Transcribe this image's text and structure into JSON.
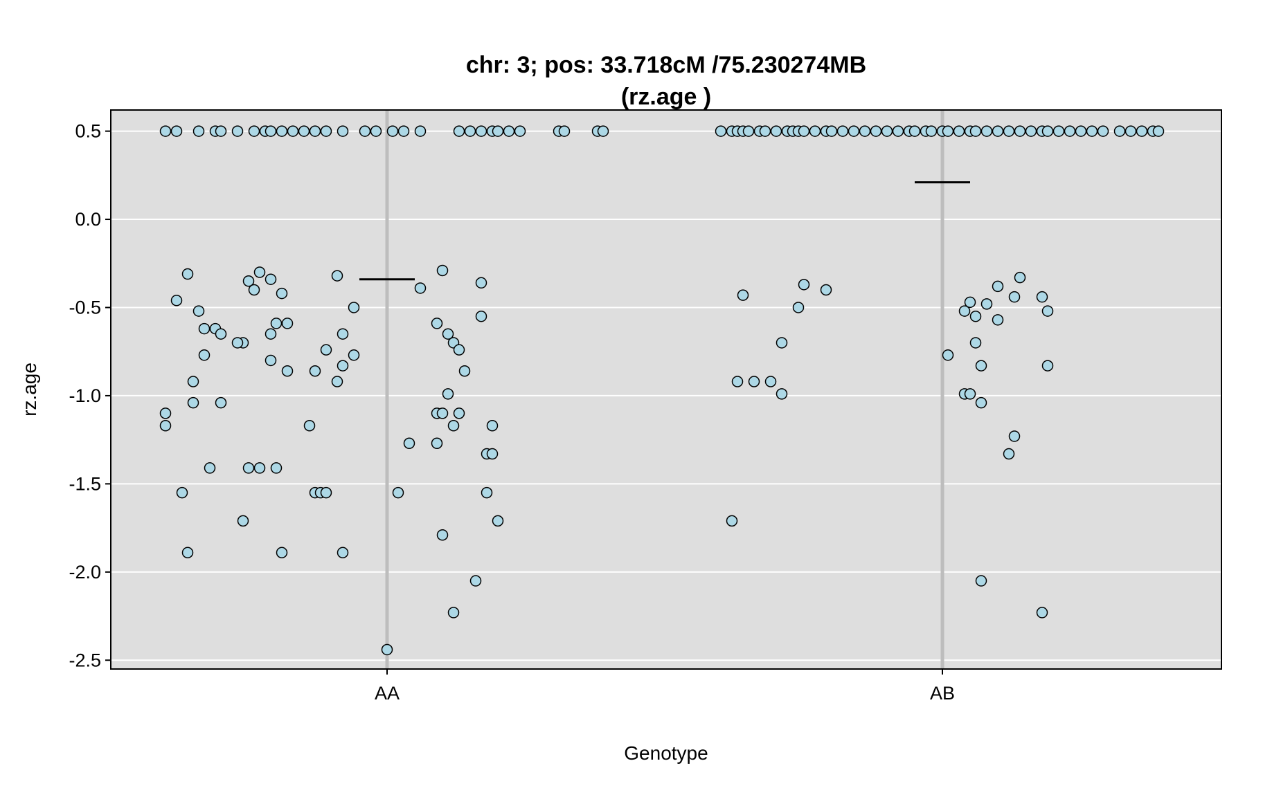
{
  "chart_data": {
    "type": "scatter",
    "title": [
      "chr: 3; pos: 33.718cM /75.230274MB",
      "(rz.age )"
    ],
    "xlabel": "Genotype",
    "ylabel": "rz.age",
    "categories": [
      "AA",
      "AB"
    ],
    "ylim": [
      -2.55,
      0.62
    ],
    "yticks": [
      0.5,
      0.0,
      -0.5,
      -1.0,
      -1.5,
      -2.0,
      -2.5
    ],
    "ytick_labels": [
      "0.5",
      "0.0",
      "-0.5",
      "-1.0",
      "-1.5",
      "-2.0",
      "-2.5"
    ],
    "grid": true,
    "colors": {
      "panel": "#dedede",
      "point_fill": "#add8e6",
      "point_stroke": "#000000",
      "grid": "#ffffff",
      "center_line": "#bdbdbd",
      "mean_line": "#000000"
    },
    "series": [
      {
        "category": "AA",
        "mean": -0.34,
        "points": [
          [
            -0.4,
            0.5
          ],
          [
            -0.38,
            0.5
          ],
          [
            -0.34,
            0.5
          ],
          [
            -0.31,
            0.5
          ],
          [
            -0.3,
            0.5
          ],
          [
            -0.27,
            0.5
          ],
          [
            -0.24,
            0.5
          ],
          [
            -0.22,
            0.5
          ],
          [
            -0.21,
            0.5
          ],
          [
            -0.19,
            0.5
          ],
          [
            -0.17,
            0.5
          ],
          [
            -0.15,
            0.5
          ],
          [
            -0.13,
            0.5
          ],
          [
            -0.11,
            0.5
          ],
          [
            -0.08,
            0.5
          ],
          [
            -0.04,
            0.5
          ],
          [
            -0.02,
            0.5
          ],
          [
            0.01,
            0.5
          ],
          [
            0.03,
            0.5
          ],
          [
            0.06,
            0.5
          ],
          [
            0.13,
            0.5
          ],
          [
            0.15,
            0.5
          ],
          [
            0.17,
            0.5
          ],
          [
            0.19,
            0.5
          ],
          [
            0.2,
            0.5
          ],
          [
            0.22,
            0.5
          ],
          [
            0.24,
            0.5
          ],
          [
            0.31,
            0.5
          ],
          [
            0.32,
            0.5
          ],
          [
            0.38,
            0.5
          ],
          [
            0.39,
            0.5
          ],
          [
            -0.36,
            -0.31
          ],
          [
            -0.38,
            -0.46
          ],
          [
            -0.34,
            -0.52
          ],
          [
            -0.33,
            -0.62
          ],
          [
            -0.31,
            -0.62
          ],
          [
            -0.3,
            -0.65
          ],
          [
            -0.33,
            -0.77
          ],
          [
            -0.35,
            -0.92
          ],
          [
            -0.4,
            -1.1
          ],
          [
            -0.35,
            -1.04
          ],
          [
            -0.4,
            -1.17
          ],
          [
            -0.3,
            -1.04
          ],
          [
            -0.32,
            -1.41
          ],
          [
            -0.37,
            -1.55
          ],
          [
            -0.36,
            -1.89
          ],
          [
            -0.25,
            -0.35
          ],
          [
            -0.26,
            -0.7
          ],
          [
            -0.27,
            -0.7
          ],
          [
            -0.23,
            -0.3
          ],
          [
            -0.24,
            -0.4
          ],
          [
            -0.21,
            -0.34
          ],
          [
            -0.19,
            -0.42
          ],
          [
            -0.21,
            -0.65
          ],
          [
            -0.2,
            -0.59
          ],
          [
            -0.18,
            -0.59
          ],
          [
            -0.21,
            -0.8
          ],
          [
            -0.18,
            -0.86
          ],
          [
            -0.25,
            -1.41
          ],
          [
            -0.23,
            -1.41
          ],
          [
            -0.2,
            -1.41
          ],
          [
            -0.26,
            -1.71
          ],
          [
            -0.19,
            -1.89
          ],
          [
            -0.14,
            -1.17
          ],
          [
            -0.13,
            -1.55
          ],
          [
            -0.12,
            -1.55
          ],
          [
            -0.11,
            -1.55
          ],
          [
            -0.13,
            -0.86
          ],
          [
            -0.11,
            -0.74
          ],
          [
            -0.09,
            -0.92
          ],
          [
            -0.08,
            -0.83
          ],
          [
            -0.08,
            -0.65
          ],
          [
            -0.06,
            -0.77
          ],
          [
            -0.06,
            -0.5
          ],
          [
            -0.09,
            -0.32
          ],
          [
            -0.08,
            -1.89
          ],
          [
            0.02,
            -1.55
          ],
          [
            0.04,
            -1.27
          ],
          [
            0.06,
            -0.39
          ],
          [
            0.09,
            -1.1
          ],
          [
            0.09,
            -1.27
          ],
          [
            0.09,
            -0.59
          ],
          [
            0.1,
            -1.1
          ],
          [
            0.1,
            -0.29
          ],
          [
            0.1,
            -1.79
          ],
          [
            0.11,
            -0.99
          ],
          [
            0.11,
            -0.65
          ],
          [
            0.12,
            -0.7
          ],
          [
            0.13,
            -0.74
          ],
          [
            0.12,
            -1.17
          ],
          [
            0.13,
            -1.1
          ],
          [
            0.14,
            -0.86
          ],
          [
            0.12,
            -2.23
          ],
          [
            0.16,
            -2.05
          ],
          [
            0.17,
            -0.55
          ],
          [
            0.17,
            -0.36
          ],
          [
            0.18,
            -1.55
          ],
          [
            0.18,
            -1.33
          ],
          [
            0.19,
            -1.33
          ],
          [
            0.19,
            -1.17
          ],
          [
            0.2,
            -1.71
          ],
          [
            0.0,
            -2.44
          ]
        ]
      },
      {
        "category": "AB",
        "mean": 0.21,
        "points": [
          [
            -0.4,
            0.5
          ],
          [
            -0.38,
            0.5
          ],
          [
            -0.37,
            0.5
          ],
          [
            -0.36,
            0.5
          ],
          [
            -0.35,
            0.5
          ],
          [
            -0.33,
            0.5
          ],
          [
            -0.32,
            0.5
          ],
          [
            -0.3,
            0.5
          ],
          [
            -0.28,
            0.5
          ],
          [
            -0.27,
            0.5
          ],
          [
            -0.26,
            0.5
          ],
          [
            -0.25,
            0.5
          ],
          [
            -0.23,
            0.5
          ],
          [
            -0.21,
            0.5
          ],
          [
            -0.2,
            0.5
          ],
          [
            -0.18,
            0.5
          ],
          [
            -0.16,
            0.5
          ],
          [
            -0.14,
            0.5
          ],
          [
            -0.12,
            0.5
          ],
          [
            -0.1,
            0.5
          ],
          [
            -0.08,
            0.5
          ],
          [
            -0.06,
            0.5
          ],
          [
            -0.05,
            0.5
          ],
          [
            -0.03,
            0.5
          ],
          [
            -0.02,
            0.5
          ],
          [
            0.0,
            0.5
          ],
          [
            0.01,
            0.5
          ],
          [
            0.03,
            0.5
          ],
          [
            0.05,
            0.5
          ],
          [
            0.06,
            0.5
          ],
          [
            0.08,
            0.5
          ],
          [
            0.1,
            0.5
          ],
          [
            0.12,
            0.5
          ],
          [
            0.14,
            0.5
          ],
          [
            0.16,
            0.5
          ],
          [
            0.18,
            0.5
          ],
          [
            0.19,
            0.5
          ],
          [
            0.21,
            0.5
          ],
          [
            0.23,
            0.5
          ],
          [
            0.25,
            0.5
          ],
          [
            0.27,
            0.5
          ],
          [
            0.29,
            0.5
          ],
          [
            0.32,
            0.5
          ],
          [
            0.34,
            0.5
          ],
          [
            0.36,
            0.5
          ],
          [
            0.38,
            0.5
          ],
          [
            0.39,
            0.5
          ],
          [
            -0.36,
            -0.43
          ],
          [
            -0.37,
            -0.92
          ],
          [
            -0.34,
            -0.92
          ],
          [
            -0.38,
            -1.71
          ],
          [
            -0.31,
            -0.92
          ],
          [
            -0.29,
            -0.99
          ],
          [
            -0.29,
            -0.7
          ],
          [
            -0.26,
            -0.5
          ],
          [
            -0.25,
            -0.37
          ],
          [
            -0.21,
            -0.4
          ],
          [
            0.01,
            -0.77
          ],
          [
            0.04,
            -0.52
          ],
          [
            0.04,
            -0.99
          ],
          [
            0.05,
            -0.99
          ],
          [
            0.05,
            -0.47
          ],
          [
            0.06,
            -0.7
          ],
          [
            0.06,
            -0.55
          ],
          [
            0.07,
            -0.83
          ],
          [
            0.07,
            -1.04
          ],
          [
            0.08,
            -0.48
          ],
          [
            0.07,
            -2.05
          ],
          [
            0.1,
            -0.38
          ],
          [
            0.1,
            -0.57
          ],
          [
            0.12,
            -1.33
          ],
          [
            0.13,
            -0.44
          ],
          [
            0.14,
            -0.33
          ],
          [
            0.13,
            -1.23
          ],
          [
            0.18,
            -0.44
          ],
          [
            0.19,
            -0.52
          ],
          [
            0.19,
            -0.83
          ],
          [
            0.18,
            -2.23
          ]
        ]
      }
    ]
  }
}
